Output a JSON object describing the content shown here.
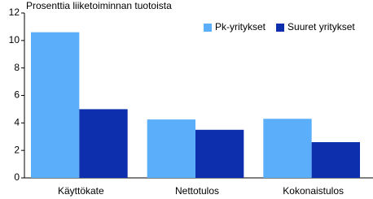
{
  "chart_data": {
    "type": "bar",
    "title": "Prosenttia liiketoiminnan tuotoista",
    "categories": [
      "Käyttökate",
      "Nettotulos",
      "Kokonaistulos"
    ],
    "series": [
      {
        "name": "Pk-yritykset",
        "color": "#5aaefa",
        "values": [
          10.6,
          4.25,
          4.3
        ]
      },
      {
        "name": "Suuret yritykset",
        "color": "#0d2fae",
        "values": [
          5.0,
          3.5,
          2.6
        ]
      }
    ],
    "ylim": [
      0,
      12
    ],
    "yticks": [
      0,
      2,
      4,
      6,
      8,
      10,
      12
    ],
    "grid": false,
    "legend": "top-right"
  }
}
